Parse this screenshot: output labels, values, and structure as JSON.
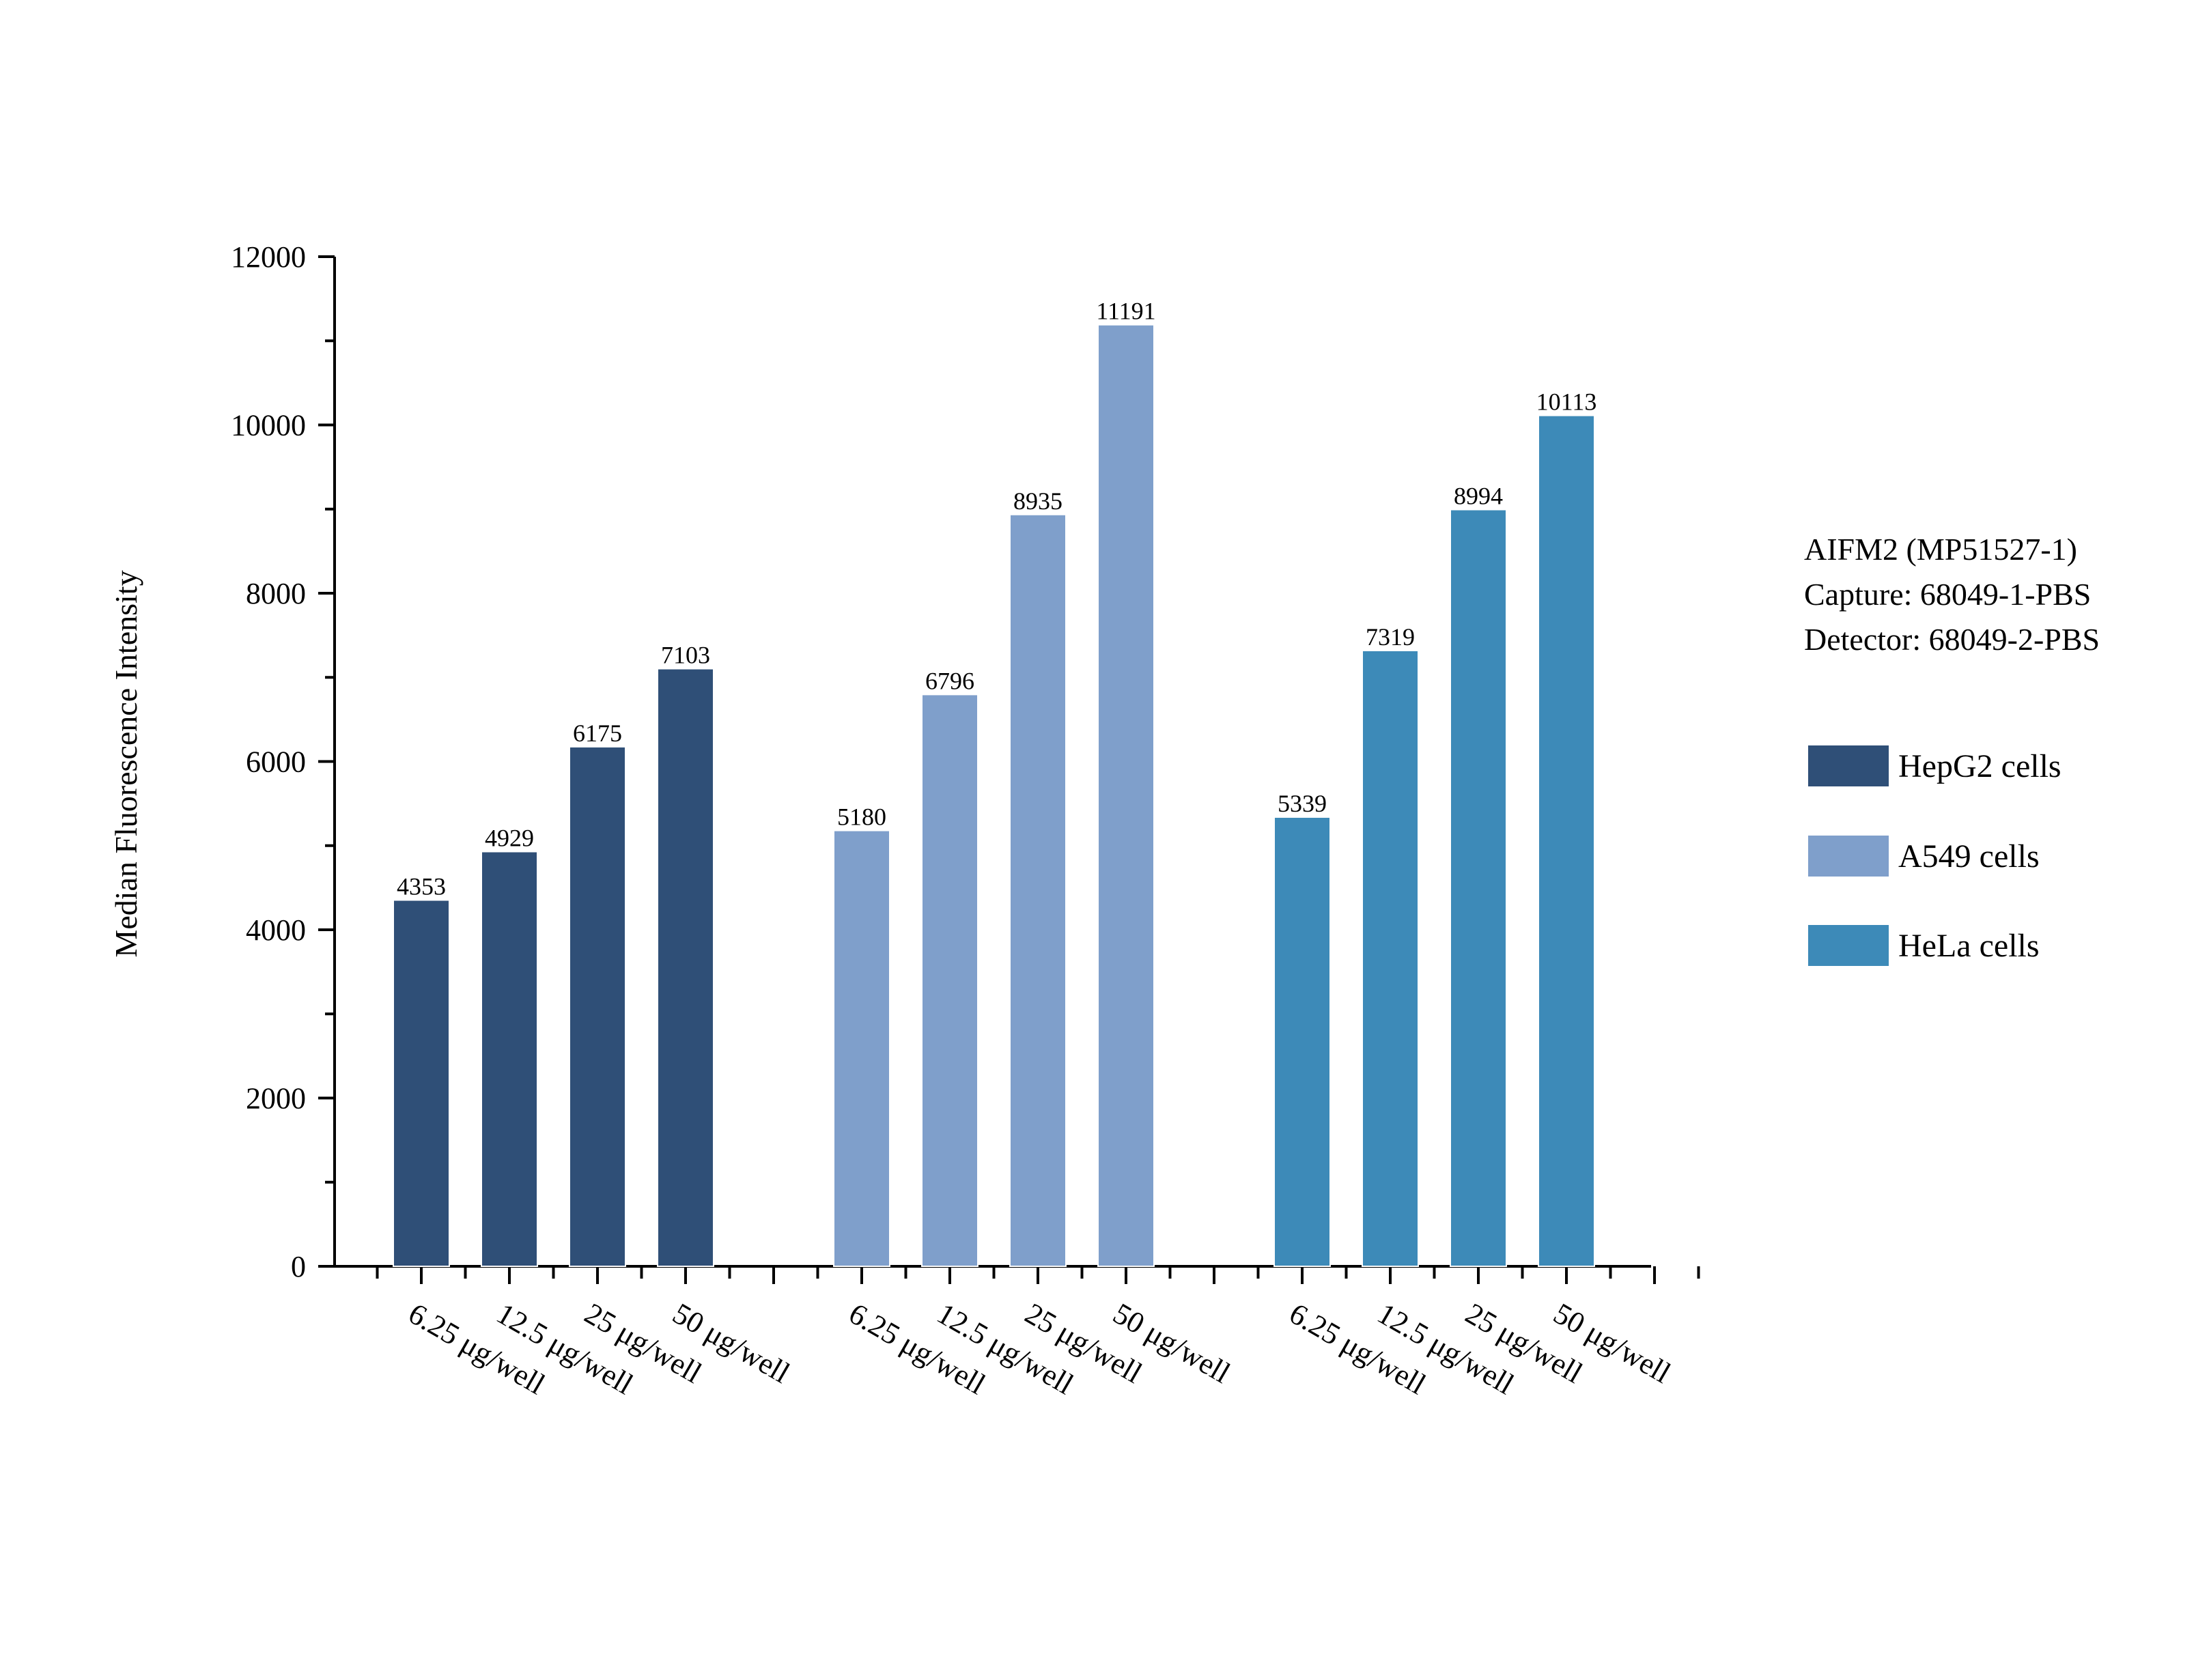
{
  "chart_data": {
    "type": "bar",
    "ylabel": "Median Fluorescence Intensity",
    "xlabel": "",
    "ylim": [
      0,
      12000
    ],
    "yticks": [
      0,
      2000,
      4000,
      6000,
      8000,
      10000,
      12000
    ],
    "categories": [
      "6.25 μg/well",
      "12.5 μg/well",
      "25 μg/well",
      "50 μg/well"
    ],
    "series": [
      {
        "name": "HepG2 cells",
        "color": "#2f4f77",
        "values": [
          4353,
          4929,
          6175,
          7103
        ]
      },
      {
        "name": "A549 cells",
        "color": "#7f9fcb",
        "values": [
          5180,
          6796,
          8935,
          11191
        ]
      },
      {
        "name": "HeLa cells",
        "color": "#3d8ab8",
        "values": [
          5339,
          7319,
          8994,
          10113
        ]
      }
    ],
    "annotation_lines": [
      "AIFM2 (MP51527-1)",
      "Capture: 68049-1-PBS",
      "Detector: 68049-2-PBS"
    ],
    "legend_position": "right"
  }
}
